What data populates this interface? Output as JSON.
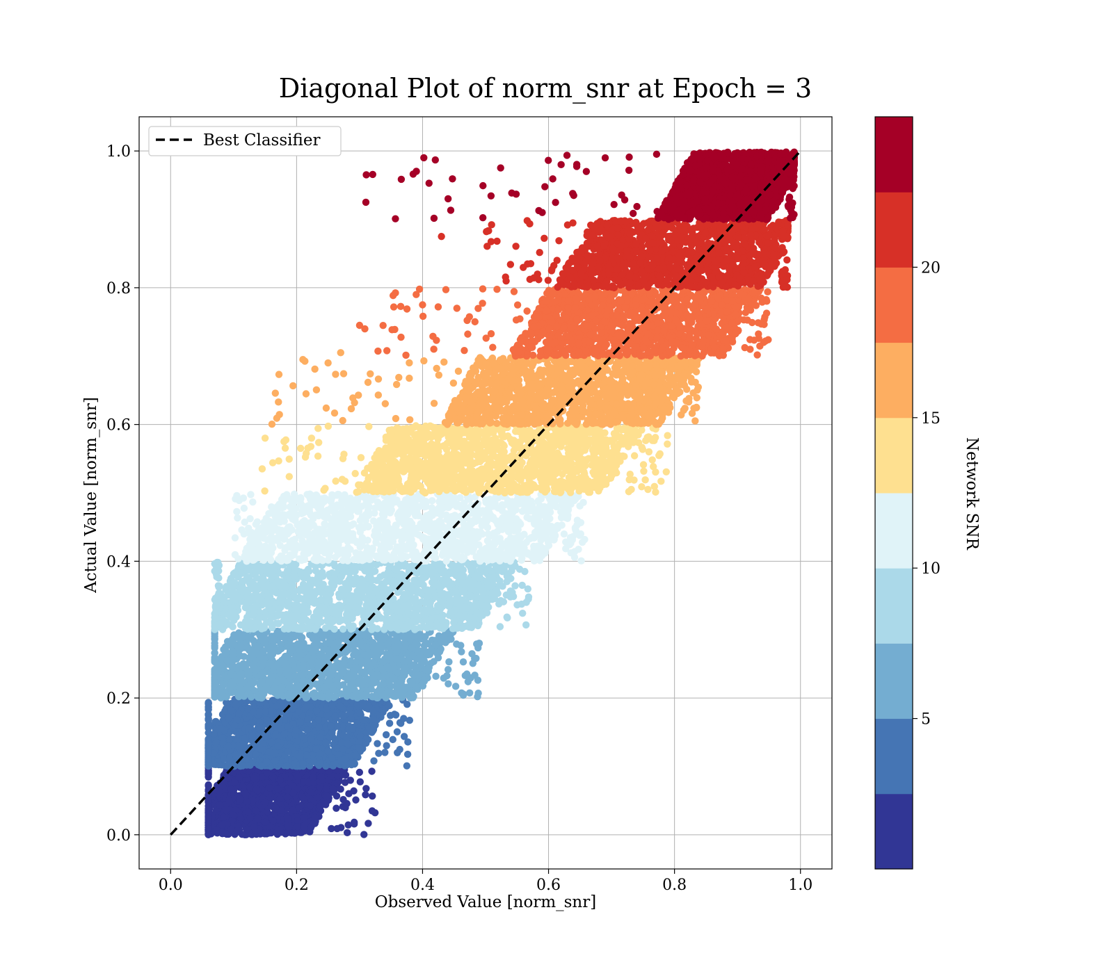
{
  "chart_data": {
    "type": "scatter",
    "title": "Diagonal Plot of norm_snr at Epoch = 3",
    "xlabel": "Observed Value [norm_snr]",
    "ylabel": "Actual Value [norm_snr]",
    "xlim": [
      -0.05,
      1.05
    ],
    "ylim": [
      -0.05,
      1.05
    ],
    "x_ticks": [
      "0.0",
      "0.2",
      "0.4",
      "0.6",
      "0.8",
      "1.0"
    ],
    "y_ticks": [
      "0.0",
      "0.2",
      "0.4",
      "0.6",
      "0.8",
      "1.0"
    ],
    "grid": true,
    "legend": {
      "placement": "upper-left",
      "entries": [
        "Best Classifier"
      ]
    },
    "reference_line": {
      "name": "Best Classifier",
      "style": "dashed",
      "color": "#000000",
      "x": [
        0.0,
        1.0
      ],
      "y": [
        0.0,
        1.0
      ]
    },
    "colorbar": {
      "label": "Network SNR",
      "range": [
        0,
        25
      ],
      "ticks": [
        "5",
        "10",
        "15",
        "20"
      ],
      "bands": [
        "#313695",
        "#4575b4",
        "#74add1",
        "#abd9e9",
        "#e0f3f8",
        "#fee090",
        "#fdae61",
        "#f46d43",
        "#d73027",
        "#a50026"
      ]
    },
    "bands": [
      {
        "y_range": [
          0.0,
          0.1
        ],
        "color": "#313695",
        "x_core": [
          0.06,
          0.25
        ],
        "x_spread": [
          0.06,
          0.33
        ]
      },
      {
        "y_range": [
          0.1,
          0.2
        ],
        "color": "#4575b4",
        "x_core": [
          0.06,
          0.32
        ],
        "x_spread": [
          0.06,
          0.38
        ]
      },
      {
        "y_range": [
          0.2,
          0.3
        ],
        "color": "#74add1",
        "x_core": [
          0.07,
          0.42
        ],
        "x_spread": [
          0.07,
          0.49
        ]
      },
      {
        "y_range": [
          0.3,
          0.4
        ],
        "color": "#abd9e9",
        "x_core": [
          0.08,
          0.52
        ],
        "x_spread": [
          0.07,
          0.57
        ]
      },
      {
        "y_range": [
          0.4,
          0.5
        ],
        "color": "#e0f3f8",
        "x_core": [
          0.14,
          0.62
        ],
        "x_spread": [
          0.1,
          0.66
        ]
      },
      {
        "y_range": [
          0.5,
          0.6
        ],
        "color": "#fee090",
        "x_core": [
          0.32,
          0.72
        ],
        "x_spread": [
          0.14,
          0.79
        ]
      },
      {
        "y_range": [
          0.6,
          0.7
        ],
        "color": "#fdae61",
        "x_core": [
          0.46,
          0.81
        ],
        "x_spread": [
          0.16,
          0.84
        ]
      },
      {
        "y_range": [
          0.7,
          0.8
        ],
        "color": "#f46d43",
        "x_core": [
          0.57,
          0.91
        ],
        "x_spread": [
          0.3,
          0.95
        ]
      },
      {
        "y_range": [
          0.8,
          0.9
        ],
        "color": "#d73027",
        "x_core": [
          0.64,
          0.97
        ],
        "x_spread": [
          0.5,
          0.98
        ]
      },
      {
        "y_range": [
          0.9,
          1.0
        ],
        "color": "#a50026",
        "x_core": [
          0.8,
          0.98
        ],
        "x_spread": [
          0.31,
          0.99
        ]
      }
    ],
    "outliers": [
      {
        "x": 0.31,
        "y": 0.925,
        "color": "#a50026"
      },
      {
        "x": 0.43,
        "y": 0.875,
        "color": "#d73027"
      },
      {
        "x": 0.3,
        "y": 0.745,
        "color": "#f46d43"
      },
      {
        "x": 0.4,
        "y": 0.775,
        "color": "#f46d43"
      },
      {
        "x": 0.27,
        "y": 0.705,
        "color": "#fdae61"
      },
      {
        "x": 0.21,
        "y": 0.695,
        "color": "#fdae61"
      },
      {
        "x": 0.25,
        "y": 0.69,
        "color": "#fdae61"
      },
      {
        "x": 0.15,
        "y": 0.58,
        "color": "#fee090"
      },
      {
        "x": 0.18,
        "y": 0.575,
        "color": "#fee090"
      },
      {
        "x": 0.49,
        "y": 0.28,
        "color": "#74add1"
      },
      {
        "x": 0.32,
        "y": 0.035,
        "color": "#313695"
      },
      {
        "x": 0.36,
        "y": 0.12,
        "color": "#4575b4"
      },
      {
        "x": 0.37,
        "y": 0.17,
        "color": "#4575b4"
      },
      {
        "x": 0.59,
        "y": 0.91,
        "color": "#a50026"
      },
      {
        "x": 0.66,
        "y": 0.97,
        "color": "#a50026"
      },
      {
        "x": 0.69,
        "y": 0.99,
        "color": "#a50026"
      },
      {
        "x": 0.62,
        "y": 0.98,
        "color": "#a50026"
      },
      {
        "x": 0.64,
        "y": 0.935,
        "color": "#a50026"
      }
    ]
  }
}
